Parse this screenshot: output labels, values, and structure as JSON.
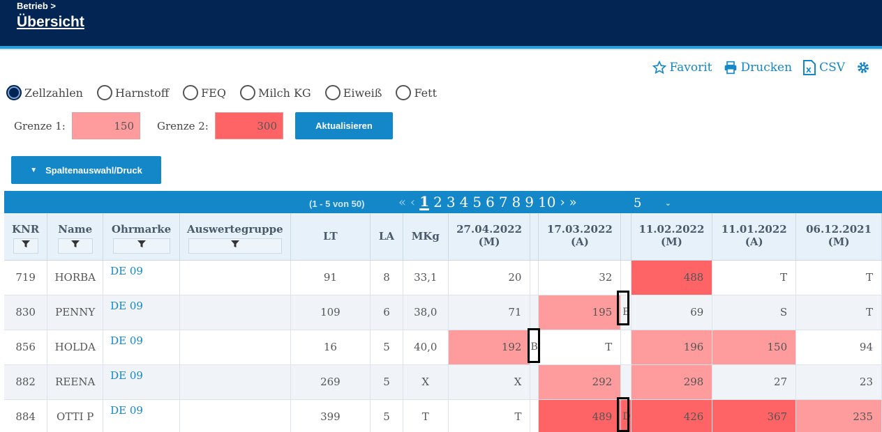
{
  "header": {
    "breadcrumb": "Betrieb >",
    "title": "Übersicht"
  },
  "actions": {
    "favorite": "Favorit",
    "print": "Drucken",
    "csv": "CSV"
  },
  "radios": [
    "Zellzahlen",
    "Harnstoff",
    "FEQ",
    "Milch KG",
    "Eiweiß",
    "Fett"
  ],
  "limits": {
    "label1": "Grenze 1:",
    "value1": "150",
    "label2": "Grenze 2:",
    "value2": "300",
    "update_label": "Aktualisieren"
  },
  "column_select_label": "Spaltenauswahl/Druck",
  "pager": {
    "count": "(1 - 5 von 50)",
    "pages": [
      "1",
      "2",
      "3",
      "4",
      "5",
      "6",
      "7",
      "8",
      "9",
      "10"
    ],
    "current": "1",
    "page_size": "5"
  },
  "table": {
    "headers": {
      "knr": "KNR",
      "name": "Name",
      "ohrmarke": "Ohrmarke",
      "gruppe": "Auswertegruppe",
      "lt": "LT",
      "la": "LA",
      "mkg": "MKg",
      "d1": "27.04.2022",
      "d1s": "(M)",
      "d2": "17.03.2022",
      "d2s": "(A)",
      "d3": "11.02.2022",
      "d3s": "(M)",
      "d4": "11.01.2022",
      "d4s": "(A)",
      "d5": "06.12.2021",
      "d5s": "(M)"
    },
    "rows": [
      {
        "knr": "719",
        "name": "HORBA",
        "ohrmarke": "DE 09",
        "gruppe": "",
        "lt": "91",
        "la": "8",
        "mkg": "33,1",
        "d1": "20",
        "f1": "",
        "d2": "32",
        "f2": "",
        "d3": "488",
        "d4": "T",
        "d5": "T"
      },
      {
        "knr": "830",
        "name": "PENNY",
        "ohrmarke": "DE 09",
        "gruppe": "",
        "lt": "109",
        "la": "6",
        "mkg": "38,0",
        "d1": "71",
        "f1": "",
        "d2": "195",
        "f2": "B",
        "d3": "69",
        "d4": "S",
        "d5": "T"
      },
      {
        "knr": "856",
        "name": "HOLDA",
        "ohrmarke": "DE 09",
        "gruppe": "",
        "lt": "16",
        "la": "5",
        "mkg": "40,0",
        "d1": "192",
        "f1": "B",
        "d2": "T",
        "f2": "",
        "d3": "196",
        "d4": "150",
        "d5": "94"
      },
      {
        "knr": "882",
        "name": "REENA",
        "ohrmarke": "DE 09",
        "gruppe": "",
        "lt": "269",
        "la": "5",
        "mkg": "X",
        "d1": "X",
        "f1": "",
        "d2": "292",
        "f2": "",
        "d3": "298",
        "d4": "27",
        "d5": "23"
      },
      {
        "knr": "884",
        "name": "OTTI P",
        "ohrmarke": "DE 09",
        "gruppe": "",
        "lt": "399",
        "la": "5",
        "mkg": "T",
        "d1": "T",
        "f1": "",
        "d2": "489",
        "f2": "D",
        "d3": "426",
        "d4": "367",
        "d5": "235"
      }
    ]
  },
  "colors": {
    "header_bg": "#032553",
    "accent": "#1487c9",
    "limit1": "#fe9b9c",
    "limit2": "#fe6465"
  }
}
